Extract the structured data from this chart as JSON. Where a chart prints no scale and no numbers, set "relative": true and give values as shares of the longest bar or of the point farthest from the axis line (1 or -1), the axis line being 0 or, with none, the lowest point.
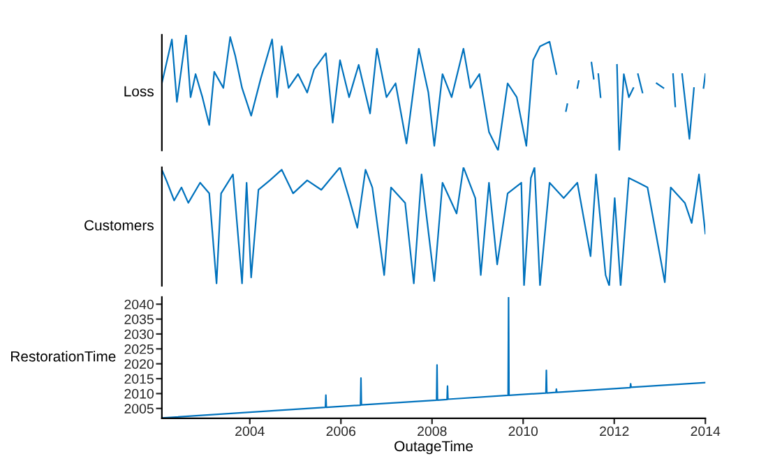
{
  "chart_data": [
    {
      "type": "line",
      "ylabel": "Loss",
      "relative": true,
      "tick_labels": false,
      "xlim": [
        2002.07,
        2014.0
      ],
      "grid": false,
      "legend": false,
      "x": [
        2002.07,
        2002.29,
        2002.4,
        2002.6,
        2002.7,
        2002.81,
        2002.96,
        2003.11,
        2003.22,
        2003.42,
        2003.57,
        2003.68,
        2003.83,
        2004.03,
        2004.24,
        2004.49,
        2004.6,
        2004.7,
        2004.85,
        2005.06,
        2005.26,
        2005.41,
        2005.67,
        2005.82,
        2005.98,
        2006.18,
        2006.39,
        2006.64,
        2006.79,
        2007.0,
        2007.2,
        2007.44,
        2007.61,
        2007.71,
        2007.92,
        2008.05,
        2008.23,
        2008.43,
        2008.69,
        2008.84,
        2009.04,
        2009.25,
        2009.45,
        2009.66,
        2009.86,
        2010.07,
        2010.22,
        2010.37,
        2010.58,
        2010.73,
        2010.78,
        2010.94,
        2010.97,
        2011.0,
        2011.19,
        2011.22,
        2011.3,
        2011.5,
        2011.55,
        2011.6,
        2011.65,
        2011.7,
        2011.9,
        2012.06,
        2012.11,
        2012.21,
        2012.32,
        2012.42,
        2012.46,
        2012.52,
        2012.62,
        2012.75,
        2012.93,
        2013.08,
        2013.15,
        2013.29,
        2013.34,
        2013.4,
        2013.49,
        2013.65,
        2013.75,
        2013.85,
        2013.96,
        2014.0
      ],
      "series": [
        {
          "color": "#0072bd",
          "values": [
            0.58,
            0.96,
            0.42,
            1.0,
            0.46,
            0.66,
            0.46,
            0.22,
            0.68,
            0.54,
            0.98,
            0.82,
            0.54,
            0.3,
            0.62,
            0.96,
            0.46,
            0.9,
            0.54,
            0.66,
            0.5,
            0.7,
            0.84,
            0.24,
            0.78,
            0.46,
            0.74,
            0.32,
            0.88,
            0.46,
            0.58,
            0.06,
            0.58,
            0.88,
            0.5,
            0.04,
            0.66,
            0.46,
            0.88,
            0.54,
            0.66,
            0.16,
            0.0,
            0.58,
            0.46,
            0.04,
            0.78,
            0.9,
            0.94,
            0.66,
            null,
            0.34,
            0.4,
            null,
            0.54,
            0.6,
            null,
            0.76,
            0.62,
            null,
            0.66,
            0.46,
            null,
            0.74,
            0.0,
            0.66,
            0.46,
            0.54,
            null,
            0.66,
            0.5,
            null,
            0.58,
            0.54,
            null,
            0.66,
            0.38,
            null,
            0.66,
            0.1,
            0.54,
            null,
            0.54,
            0.66
          ]
        }
      ]
    },
    {
      "type": "line",
      "ylabel": "Customers",
      "relative": true,
      "tick_labels": false,
      "xlim": [
        2002.07,
        2014.0
      ],
      "grid": false,
      "legend": false,
      "x": [
        2002.07,
        2002.19,
        2002.34,
        2002.5,
        2002.65,
        2002.91,
        2003.11,
        2003.27,
        2003.37,
        2003.63,
        2003.83,
        2003.93,
        2004.03,
        2004.19,
        2004.44,
        2004.7,
        2004.95,
        2005.26,
        2005.57,
        2005.98,
        2006.18,
        2006.36,
        2006.54,
        2006.69,
        2006.95,
        2007.1,
        2007.41,
        2007.6,
        2007.77,
        2008.05,
        2008.23,
        2008.54,
        2008.69,
        2008.95,
        2009.07,
        2009.25,
        2009.43,
        2009.66,
        2009.96,
        2010.02,
        2010.17,
        2010.25,
        2010.37,
        2010.58,
        2010.89,
        2011.19,
        2011.48,
        2011.6,
        2011.81,
        2011.89,
        2012.01,
        2012.14,
        2012.32,
        2012.53,
        2012.73,
        2013.11,
        2013.24,
        2013.55,
        2013.7,
        2013.86,
        2014.0
      ],
      "series": [
        {
          "color": "#0072bd",
          "values": [
            0.98,
            0.87,
            0.72,
            0.83,
            0.7,
            0.87,
            0.78,
            0.02,
            0.78,
            0.94,
            0.02,
            0.87,
            0.07,
            0.81,
            0.89,
            0.98,
            0.78,
            0.89,
            0.81,
            1.0,
            0.74,
            0.49,
            0.98,
            0.83,
            0.09,
            0.83,
            0.7,
            0.02,
            0.94,
            0.04,
            0.87,
            0.61,
            1.0,
            0.74,
            0.09,
            0.87,
            0.18,
            0.78,
            0.87,
            0.0,
            0.91,
            1.0,
            0.0,
            0.87,
            0.74,
            0.87,
            0.25,
            0.94,
            0.09,
            0.0,
            0.74,
            0.0,
            0.91,
            0.87,
            0.83,
            0.03,
            0.83,
            0.7,
            0.53,
            0.94,
            0.44
          ]
        }
      ]
    },
    {
      "type": "line",
      "ylabel": "RestorationTime",
      "xlabel": "OutageTime",
      "xlim": [
        2002.07,
        2014.0
      ],
      "ylim": [
        2001.7,
        2042.4
      ],
      "xticks": [
        2004,
        2006,
        2008,
        2010,
        2012,
        2014
      ],
      "yticks": [
        2005,
        2010,
        2015,
        2020,
        2025,
        2030,
        2035,
        2040
      ],
      "grid": false,
      "legend": false,
      "x": [
        2002.07,
        2005.66,
        2005.67,
        2005.68,
        2006.43,
        2006.44,
        2006.45,
        2008.1,
        2008.11,
        2008.12,
        2008.33,
        2008.34,
        2008.35,
        2009.67,
        2009.68,
        2009.69,
        2010.5,
        2010.51,
        2010.52,
        2010.72,
        2010.73,
        2010.74,
        2012.35,
        2012.36,
        2012.37,
        2014.0
      ],
      "series": [
        {
          "color": "#0072bd",
          "values": [
            2001.8,
            2005.4,
            2009.5,
            2005.4,
            2006.1,
            2015.2,
            2006.2,
            2007.8,
            2019.6,
            2007.8,
            2008.0,
            2012.5,
            2008.1,
            2009.4,
            2042.4,
            2009.4,
            2010.2,
            2017.8,
            2010.2,
            2010.4,
            2011.5,
            2010.4,
            2012.0,
            2013.3,
            2012.1,
            2013.7
          ]
        }
      ]
    }
  ]
}
